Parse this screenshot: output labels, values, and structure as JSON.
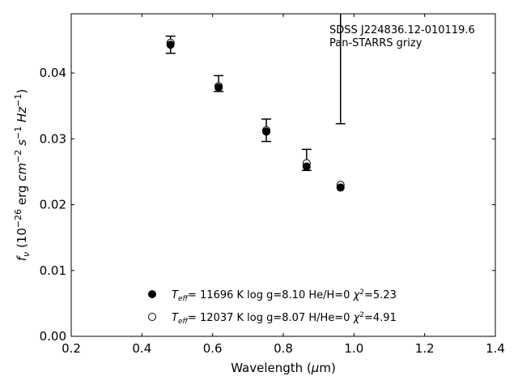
{
  "chart_data": {
    "type": "scatter",
    "annotation": [
      "SDSS J224836.12-010119.6",
      "Pan-STARRS grizy"
    ],
    "xlabel": "Wavelength (μm)",
    "ylabel": "f_ν (10^−26 erg cm^−2 s^−1 Hz^−1)",
    "xlim": [
      0.2,
      1.4
    ],
    "ylim": [
      0.0,
      0.049
    ],
    "x_ticks": [
      0.2,
      0.4,
      0.6,
      0.8,
      1.0,
      1.2,
      1.4
    ],
    "x_tick_labels": [
      "0.2",
      "0.4",
      "0.6",
      "0.8",
      "1.0",
      "1.2",
      "1.4"
    ],
    "y_ticks": [
      0.0,
      0.01,
      0.02,
      0.03,
      0.04
    ],
    "y_tick_labels": [
      "0.00",
      "0.01",
      "0.02",
      "0.03",
      "0.04"
    ],
    "grid": false,
    "legend_position": "bottom-center",
    "observed": {
      "x": [
        0.481,
        0.617,
        0.752,
        0.866,
        0.962
      ],
      "y": [
        0.0443,
        0.0384,
        0.0313,
        0.0268,
        0.0488
      ],
      "yerr": [
        0.0013,
        0.0012,
        0.0017,
        0.0016,
        0.0165
      ]
    },
    "series": [
      {
        "name": "T_eff= 11696 K  log g=8.10  He/H=0  χ²=5.23",
        "marker": "filled-circle",
        "x": [
          0.481,
          0.617,
          0.752,
          0.866,
          0.962
        ],
        "y": [
          0.0443,
          0.0378,
          0.0311,
          0.0258,
          0.0226
        ]
      },
      {
        "name": "T_eff= 12037 K  log g=8.07  H/He=0  χ²=4.91",
        "marker": "open-circle",
        "x": [
          0.481,
          0.617,
          0.752,
          0.866,
          0.962
        ],
        "y": [
          0.0446,
          0.038,
          0.0313,
          0.0263,
          0.023
        ]
      }
    ]
  }
}
